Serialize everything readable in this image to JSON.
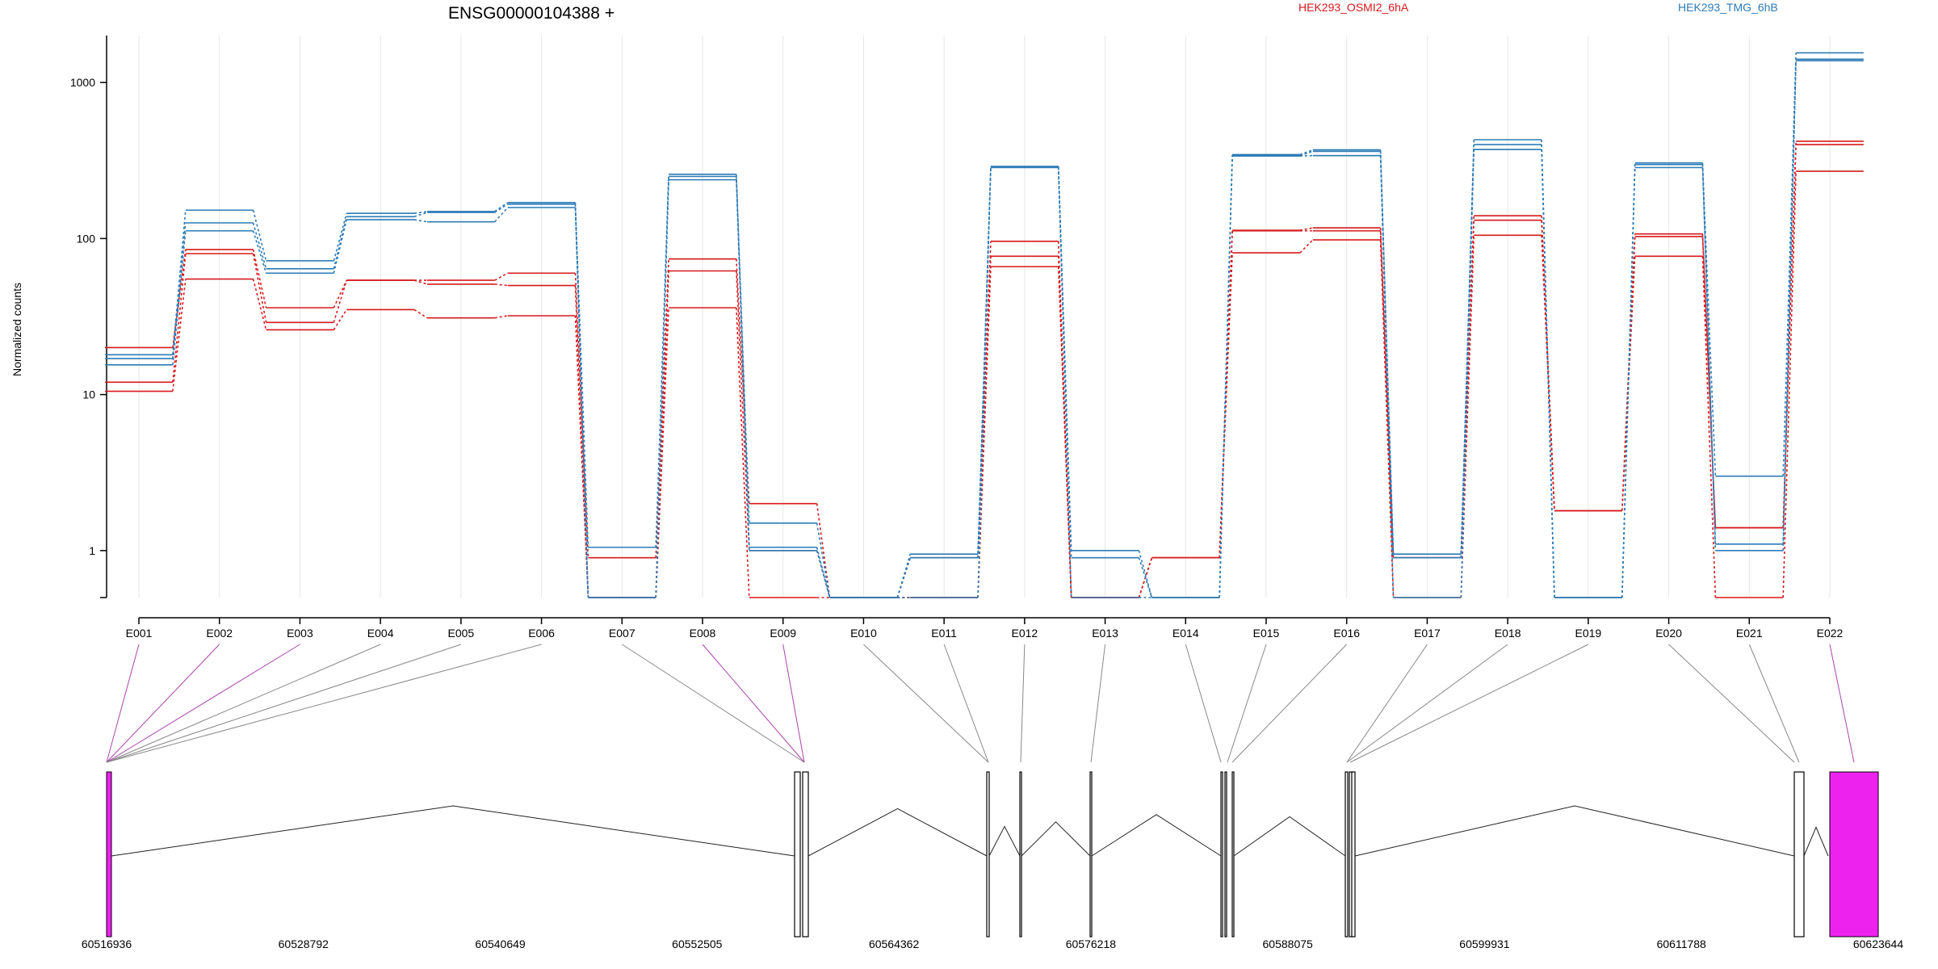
{
  "chart_data": {
    "type": "line",
    "title": "ENSG00000104388 +",
    "ylabel": "Normalized counts",
    "xlabel": "",
    "yscale": "log",
    "ylim": [
      0.5,
      2000
    ],
    "yticks": [
      "1",
      "10",
      "100",
      "1000"
    ],
    "grid": "vertical",
    "legend_placement": "top",
    "colors": {
      "HEK293_OSMI2_6hA": "#d7191c",
      "HEK293_TMG_6hB": "#2c7bb6",
      "exon_highlight": "#ee22ee"
    },
    "categories": [
      "E001",
      "E002",
      "E003",
      "E004",
      "E005",
      "E006",
      "E007",
      "E008",
      "E009",
      "E010",
      "E011",
      "E012",
      "E013",
      "E014",
      "E015",
      "E016",
      "E017",
      "E018",
      "E019",
      "E020",
      "E021",
      "E022"
    ],
    "series": [
      {
        "name": "HEK293_OSMI2_6hA",
        "values": [
          20,
          85,
          36,
          54,
          54,
          60,
          0.9,
          74,
          2.0,
          0.5,
          0.9,
          96,
          0.5,
          0.9,
          113,
          117,
          0.9,
          140,
          1.8,
          107,
          1.4,
          420
        ]
      },
      {
        "name": "HEK293_OSMI2_6hA",
        "values": [
          12,
          80,
          29,
          54,
          51,
          50,
          0.5,
          62,
          1.0,
          0.5,
          0.5,
          77,
          0.5,
          0.9,
          112,
          112,
          0.9,
          131,
          1.8,
          103,
          1.4,
          400
        ]
      },
      {
        "name": "HEK293_OSMI2_6hA",
        "values": [
          10.5,
          55,
          26,
          35,
          31,
          32,
          0.5,
          36,
          0.5,
          0.5,
          0.5,
          66,
          0.5,
          0.9,
          81,
          98,
          0.5,
          105,
          1.8,
          77,
          0.5,
          270
        ]
      },
      {
        "name": "HEK293_TMG_6hB",
        "values": [
          18,
          152,
          72,
          145,
          149,
          170,
          1.05,
          258,
          1.05,
          0.5,
          0.95,
          290,
          1.0,
          0.5,
          345,
          370,
          0.95,
          430,
          0.5,
          305,
          3.0,
          1550
        ]
      },
      {
        "name": "HEK293_TMG_6hB",
        "values": [
          17,
          126,
          64,
          138,
          147,
          166,
          0.5,
          250,
          1.5,
          0.5,
          0.9,
          288,
          0.9,
          0.5,
          340,
          362,
          0.9,
          400,
          0.5,
          298,
          1.1,
          1410
        ]
      },
      {
        "name": "HEK293_TMG_6hB",
        "values": [
          15.5,
          112,
          60,
          132,
          128,
          158,
          0.5,
          238,
          1.0,
          0.5,
          0.5,
          285,
          0.5,
          0.5,
          338,
          340,
          0.5,
          372,
          0.5,
          285,
          1.0,
          1380
        ]
      }
    ],
    "gene_model": {
      "coordinate_ticks": [
        "60516936",
        "60528792",
        "60540649",
        "60552505",
        "60564362",
        "60576218",
        "60588075",
        "60599931",
        "60611788",
        "60623644"
      ],
      "highlighted_exons": [
        "E001",
        "E002",
        "E003",
        "E008",
        "E009",
        "E022"
      ]
    }
  }
}
